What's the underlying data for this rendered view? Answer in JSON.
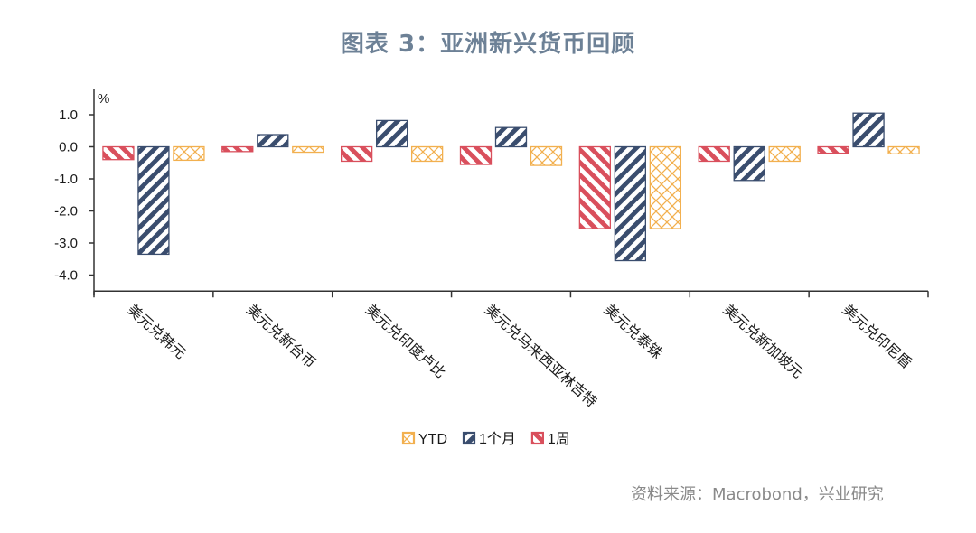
{
  "title": "图表 3：亚洲新兴货币回顾",
  "source": "资料来源：Macrobond，兴业研究",
  "chart_data": {
    "type": "bar",
    "ylabel": "%",
    "ylim": [
      -4.5,
      1.5
    ],
    "yticks": [
      1.0,
      0.0,
      -1.0,
      -2.0,
      -3.0,
      -4.0
    ],
    "ytick_labels": [
      "1.0",
      "0.0",
      "-1.0",
      "-2.0",
      "-3.0",
      "-4.0"
    ],
    "grid": false,
    "legend_position": "bottom-center",
    "categories": [
      "美元兑韩元",
      "美元兑新台币",
      "美元兑印度卢比",
      "美元兑马来西亚林吉特",
      "美元兑泰铢",
      "美元兑新加坡元",
      "美元兑印尼盾"
    ],
    "series": [
      {
        "name": "1周",
        "color": "#d94f5c",
        "pattern": "diagonal-backslash",
        "values": [
          -0.4,
          -0.15,
          -0.45,
          -0.55,
          -2.55,
          -0.45,
          -0.2
        ]
      },
      {
        "name": "1个月",
        "color": "#3a4d6e",
        "pattern": "diagonal-slash",
        "values": [
          -3.35,
          0.38,
          0.82,
          0.6,
          -3.55,
          -1.05,
          1.05
        ]
      },
      {
        "name": "YTD",
        "color": "#f2b04f",
        "pattern": "crosshatch",
        "values": [
          -0.42,
          -0.17,
          -0.45,
          -0.58,
          -2.55,
          -0.45,
          -0.22
        ]
      }
    ],
    "legend_order": [
      "YTD",
      "1个月",
      "1周"
    ]
  }
}
